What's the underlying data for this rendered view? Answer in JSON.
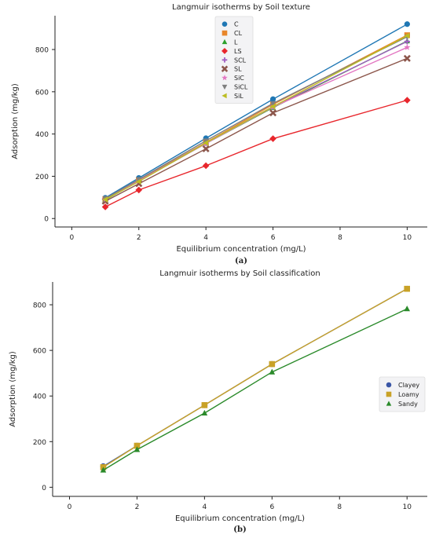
{
  "chart_data": [
    {
      "type": "scatter",
      "title": "Langmuir isotherms by Soil texture",
      "panel_label": "(a)",
      "xlabel": "Equilibrium concentration (mg/L)",
      "ylabel": "Adsorption (mg/kg)",
      "xlim": [
        -0.5,
        10.6
      ],
      "ylim": [
        -40,
        960
      ],
      "xticks": [
        0,
        2,
        4,
        6,
        8,
        10
      ],
      "yticks": [
        0,
        200,
        400,
        600,
        800
      ],
      "x": [
        1,
        2,
        4,
        6,
        10
      ],
      "grid": false,
      "legend_position": "top-center",
      "series": [
        {
          "name": "C",
          "color": "#1f77b4",
          "marker": "circle",
          "values": [
            98,
            192,
            380,
            565,
            920
          ]
        },
        {
          "name": "CL",
          "color": "#e8862a",
          "marker": "square",
          "values": [
            92,
            182,
            360,
            540,
            868
          ]
        },
        {
          "name": "L",
          "color": "#2ca02c",
          "marker": "triangle",
          "values": [
            88,
            178,
            355,
            525,
            840
          ]
        },
        {
          "name": "LS",
          "color": "#e8262c",
          "marker": "diamond",
          "values": [
            55,
            135,
            250,
            378,
            560
          ]
        },
        {
          "name": "SCL",
          "color": "#a05fc2",
          "marker": "plus",
          "values": [
            90,
            178,
            358,
            530,
            838
          ]
        },
        {
          "name": "SL",
          "color": "#8c564b",
          "marker": "x",
          "values": [
            82,
            165,
            330,
            500,
            758
          ]
        },
        {
          "name": "SiC",
          "color": "#e377c2",
          "marker": "star",
          "values": [
            90,
            178,
            355,
            528,
            810
          ]
        },
        {
          "name": "SiCL",
          "color": "#7f7f7f",
          "marker": "triangle-down",
          "values": [
            95,
            185,
            368,
            545,
            860
          ]
        },
        {
          "name": "SiL",
          "color": "#bcbd22",
          "marker": "triangle-left",
          "values": [
            90,
            175,
            358,
            530,
            865
          ]
        }
      ]
    },
    {
      "type": "scatter",
      "title": "Langmuir isotherms by Soil classification",
      "panel_label": "(b)",
      "xlabel": "Equilibrium concentration (mg/L)",
      "ylabel": "Adsorption (mg/kg)",
      "xlim": [
        -0.5,
        10.6
      ],
      "ylim": [
        -40,
        900
      ],
      "xticks": [
        0,
        2,
        4,
        6,
        8,
        10
      ],
      "yticks": [
        0,
        200,
        400,
        600,
        800
      ],
      "x": [
        1,
        2,
        4,
        6,
        10
      ],
      "grid": false,
      "legend_position": "right",
      "series": [
        {
          "name": "Clayey",
          "color": "#3a56a6",
          "marker": "circle",
          "values": [
            92,
            182,
            360,
            540,
            870
          ]
        },
        {
          "name": "Loamy",
          "color": "#c9a227",
          "marker": "square",
          "values": [
            88,
            182,
            360,
            540,
            870
          ]
        },
        {
          "name": "Sandy",
          "color": "#2a8a2a",
          "marker": "triangle",
          "values": [
            75,
            165,
            325,
            505,
            782
          ]
        }
      ]
    }
  ]
}
